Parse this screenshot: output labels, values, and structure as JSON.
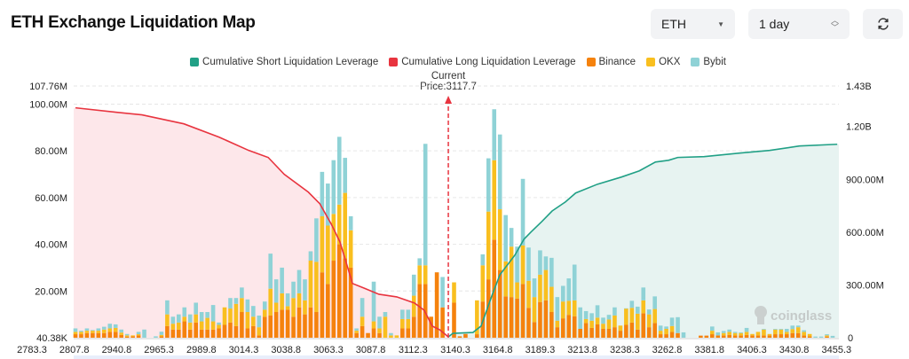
{
  "header": {
    "title": "ETH Exchange Liquidation Map",
    "symbol_select": "ETH",
    "range_select": "1 day",
    "refresh_icon": "refresh-icon"
  },
  "legend": [
    {
      "label": "Cumulative Short Liquidation Leverage",
      "color": "#21a086"
    },
    {
      "label": "Cumulative Long Liquidation Leverage",
      "color": "#e8343f"
    },
    {
      "label": "Binance",
      "color": "#f5820d"
    },
    {
      "label": "OKX",
      "color": "#f9bf1f"
    },
    {
      "label": "Bybit",
      "color": "#8fd2d6"
    }
  ],
  "current_price_label": "Current Price:3117.7",
  "watermark": "coinglass",
  "chart_data": {
    "type": "bar",
    "stacked": true,
    "current_price": 3117.7,
    "x_tick_labels": [
      "2783.3",
      "2807.8",
      "2940.8",
      "2965.3",
      "2989.8",
      "3014.3",
      "3038.8",
      "3063.3",
      "3087.8",
      "3112.3",
      "3140.3",
      "3164.8",
      "3189.3",
      "3213.8",
      "3238.3",
      "3262.8",
      "3381.8",
      "3406.3",
      "3430.8",
      "3455.3"
    ],
    "y_left": {
      "unit": "USD",
      "ylim": [
        0,
        107.76
      ],
      "tick_labels": [
        "107.76M",
        "100.00M",
        "80.00M",
        "60.00M",
        "40.00M",
        "20.00M",
        "40.38K"
      ],
      "tick_values": [
        107.76,
        100,
        80,
        60,
        40,
        20,
        0
      ]
    },
    "y_right": {
      "unit": "USD",
      "ylim": [
        0,
        1.43
      ],
      "tick_labels": [
        "1.43B",
        "1.20B",
        "900.00M",
        "600.00M",
        "300.00M",
        "0"
      ],
      "tick_values": [
        1.43,
        1.2,
        0.9,
        0.6,
        0.3,
        0
      ]
    },
    "grid": true,
    "legend_position": "top",
    "series_names": [
      "Binance",
      "OKX",
      "Bybit"
    ],
    "bars_M": [
      [
        1.5,
        1,
        1.5
      ],
      [
        1.5,
        1,
        0.5
      ],
      [
        2,
        1,
        1
      ],
      [
        2,
        1,
        0.3
      ],
      [
        2,
        1,
        1
      ],
      [
        2,
        1.5,
        1.2
      ],
      [
        2.5,
        1.5,
        2
      ],
      [
        2.5,
        1.7,
        1.5
      ],
      [
        1.2,
        1,
        1.3
      ],
      [
        0.5,
        0.5,
        0.6
      ],
      [
        0.6,
        0.4,
        0
      ],
      [
        1,
        0.5,
        1
      ],
      [
        0,
        0,
        3.5
      ],
      [
        0,
        0,
        0
      ],
      [
        0,
        0,
        0.6
      ],
      [
        0.6,
        0.6,
        1.4
      ],
      [
        5,
        5,
        6
      ],
      [
        3.5,
        2.5,
        3
      ],
      [
        3.5,
        3,
        3.5
      ],
      [
        7,
        2,
        4
      ],
      [
        3.5,
        3,
        3.5
      ],
      [
        6.5,
        3.5,
        5
      ],
      [
        3.5,
        3.5,
        4
      ],
      [
        3.5,
        5,
        2.5
      ],
      [
        3.5,
        3.5,
        7
      ],
      [
        4,
        1.5,
        1
      ],
      [
        5.5,
        7.5,
        0
      ],
      [
        6.5,
        6,
        4.5
      ],
      [
        5,
        9.5,
        2.5
      ],
      [
        11,
        6,
        4.5
      ],
      [
        4,
        7,
        5.4
      ],
      [
        5,
        4,
        4.6
      ],
      [
        1,
        3.5,
        5
      ],
      [
        9,
        3,
        3.5
      ],
      [
        9.5,
        11.5,
        15
      ],
      [
        11,
        4,
        10
      ],
      [
        12,
        7,
        11
      ],
      [
        12,
        1.5,
        5.5
      ],
      [
        9,
        8,
        7
      ],
      [
        13,
        6,
        10
      ],
      [
        10,
        6,
        9
      ],
      [
        13,
        20,
        4
      ],
      [
        11,
        21.5,
        18.6
      ],
      [
        28,
        24,
        19
      ],
      [
        23,
        25,
        18
      ],
      [
        33,
        20,
        23
      ],
      [
        40,
        17,
        29
      ],
      [
        34,
        28,
        15
      ],
      [
        30,
        16,
        6
      ],
      [
        2,
        1,
        1
      ],
      [
        5,
        4,
        8
      ],
      [
        2,
        0,
        0
      ],
      [
        4,
        3,
        17
      ],
      [
        2,
        2,
        5
      ],
      [
        0,
        9,
        2
      ],
      [
        0,
        1,
        1
      ],
      [
        0,
        1,
        0
      ],
      [
        4,
        4,
        4
      ],
      [
        4,
        4,
        4
      ],
      [
        9,
        9,
        9
      ],
      [
        23,
        8,
        3
      ],
      [
        23,
        8,
        52
      ],
      [
        9,
        0,
        0
      ],
      [
        28,
        0,
        0
      ],
      [
        13,
        0,
        13
      ],
      [
        0,
        0,
        0
      ],
      [
        15,
        8.7,
        0
      ],
      [
        0.6,
        0,
        0
      ],
      [
        1.6,
        0,
        0
      ],
      [
        0,
        0,
        0
      ],
      [
        1.5,
        14.5,
        0
      ],
      [
        15.5,
        15.5,
        4.7
      ],
      [
        25,
        29,
        22.8
      ],
      [
        42,
        34,
        21.8
      ],
      [
        29,
        26,
        32
      ],
      [
        17.7,
        15,
        19.8
      ],
      [
        17.4,
        21.6,
        8
      ],
      [
        16.8,
        6.9,
        15.3
      ],
      [
        23,
        16.5,
        28.5
      ],
      [
        12.8,
        11.6,
        14.2
      ],
      [
        6.7,
        10.7,
        8
      ],
      [
        15.3,
        11.7,
        10.4
      ],
      [
        16,
        13,
        5.8
      ],
      [
        11,
        10.8,
        12.4
      ],
      [
        4.5,
        2.8,
        10.1
      ],
      [
        8.3,
        7.2,
        6.7
      ],
      [
        9.8,
        6,
        9.6
      ],
      [
        9.2,
        6.8,
        15.3
      ],
      [
        3.8,
        0,
        9.2
      ],
      [
        6.3,
        1.7,
        3.4
      ],
      [
        4.2,
        3.1,
        3.2
      ],
      [
        5.7,
        2.9,
        5.3
      ],
      [
        3.8,
        2.2,
        2.6
      ],
      [
        3.8,
        4,
        2
      ],
      [
        4.5,
        5,
        3.5
      ],
      [
        3,
        2.2,
        0
      ],
      [
        5.5,
        7,
        0.1
      ],
      [
        6.5,
        6.3,
        3
      ],
      [
        3.5,
        6.8,
        3
      ],
      [
        10.5,
        5.5,
        5.5
      ],
      [
        4.5,
        5.5,
        2.1
      ],
      [
        6.3,
        6,
        5.4
      ],
      [
        1.5,
        1.5,
        2.2
      ],
      [
        1.5,
        2.3,
        1
      ],
      [
        2.5,
        2.5,
        3.6
      ],
      [
        2,
        0,
        6.8
      ],
      [
        0,
        0,
        2.3
      ],
      [
        0,
        0,
        0
      ],
      [
        0,
        0,
        0
      ],
      [
        0.9,
        0,
        0
      ],
      [
        0.9,
        0,
        0
      ],
      [
        1.5,
        1.5,
        1.8
      ],
      [
        1,
        0,
        1.3
      ],
      [
        1,
        1,
        0.9
      ],
      [
        1.2,
        1.3,
        1
      ],
      [
        1,
        1,
        0.5
      ],
      [
        1,
        1,
        0.3
      ],
      [
        1.2,
        1.3,
        1.7
      ],
      [
        1,
        0.6,
        0
      ],
      [
        1,
        1.5,
        0
      ],
      [
        1,
        2.5,
        0.3
      ],
      [
        1,
        0.6,
        0
      ],
      [
        1.5,
        2,
        0.3
      ],
      [
        1.5,
        2,
        0.3
      ],
      [
        1.5,
        1,
        1.3
      ],
      [
        2,
        1.7,
        1.5
      ],
      [
        2,
        2.5,
        0.7
      ],
      [
        1,
        1.5,
        0.7
      ],
      [
        0.6,
        1,
        0
      ],
      [
        0,
        0,
        0.5
      ],
      [
        0,
        0,
        0.5
      ],
      [
        0.5,
        0.5,
        0.5
      ],
      [
        0,
        0,
        0.8
      ]
    ],
    "cumulative_long_B": [
      [
        0,
        1.306
      ],
      [
        7,
        1.281
      ],
      [
        11.6,
        1.266
      ],
      [
        18.9,
        1.215
      ],
      [
        25,
        1.14
      ],
      [
        30.2,
        1.064
      ],
      [
        33.6,
        1.024
      ],
      [
        36.4,
        0.928
      ],
      [
        40.6,
        0.827
      ],
      [
        42.6,
        0.761
      ],
      [
        44.6,
        0.645
      ],
      [
        46.1,
        0.545
      ],
      [
        48.3,
        0.308
      ],
      [
        50.3,
        0.282
      ],
      [
        52.9,
        0.247
      ],
      [
        56,
        0.232
      ],
      [
        59.1,
        0.197
      ],
      [
        60.8,
        0.156
      ],
      [
        62.2,
        0.066
      ],
      [
        63.5,
        0.045
      ],
      [
        65,
        0.005
      ]
    ],
    "cumulative_short_B": [
      [
        65,
        0.005
      ],
      [
        65.8,
        0.025
      ],
      [
        69.3,
        0.03
      ],
      [
        70.7,
        0.066
      ],
      [
        72.8,
        0.257
      ],
      [
        74,
        0.358
      ],
      [
        76.6,
        0.469
      ],
      [
        78.2,
        0.56
      ],
      [
        79.4,
        0.6
      ],
      [
        81.3,
        0.66
      ],
      [
        83.1,
        0.72
      ],
      [
        85.4,
        0.771
      ],
      [
        87.2,
        0.822
      ],
      [
        91,
        0.872
      ],
      [
        95.2,
        0.913
      ],
      [
        98.3,
        0.948
      ],
      [
        101.1,
        0.998
      ],
      [
        103.4,
        1.008
      ],
      [
        105,
        1.024
      ],
      [
        109.6,
        1.029
      ],
      [
        115.8,
        1.049
      ],
      [
        121,
        1.064
      ],
      [
        126.2,
        1.089
      ],
      [
        132.8,
        1.099
      ]
    ]
  }
}
